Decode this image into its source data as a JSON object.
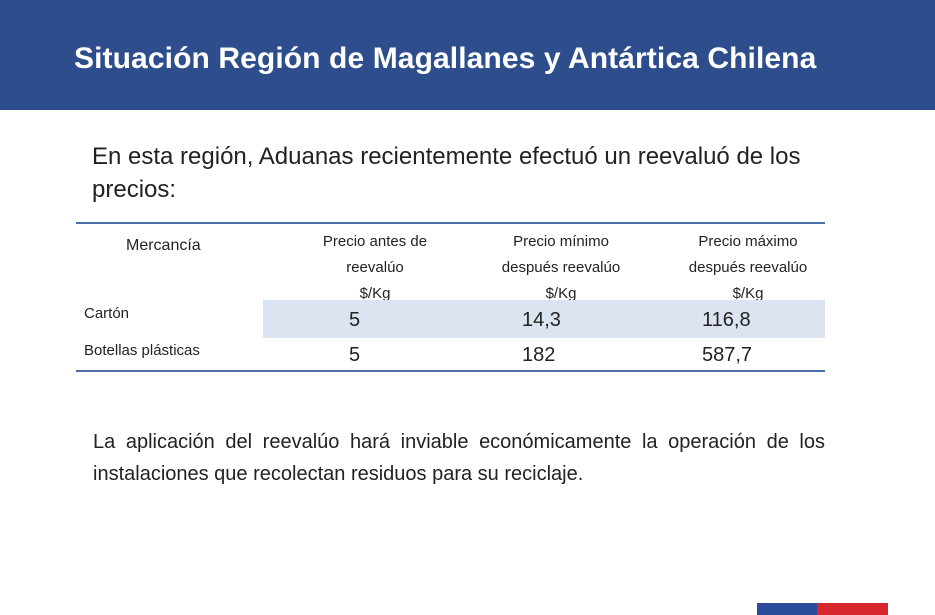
{
  "header": {
    "title": "Situación Región de Magallanes y Antártica Chilena",
    "background_color": "#2d4d8c"
  },
  "intro_text": "En esta región, Aduanas recientemente efectuó un reevaluó de los precios:",
  "table": {
    "headers": {
      "mercancia": "Mercancía",
      "precio_antes": [
        "Precio  antes de",
        "reevalúo",
        "$/Kg"
      ],
      "precio_minimo": [
        "Precio mínimo",
        "después reevalúo",
        "$/Kg"
      ],
      "precio_maximo": [
        "Precio máximo",
        "después reevalúo",
        "$/Kg"
      ]
    },
    "rows": [
      {
        "mercancia": "Cartón",
        "precio_antes": "5",
        "precio_minimo": "14,3",
        "precio_maximo": "116,8"
      },
      {
        "mercancia": "Botellas plásticas",
        "precio_antes": "5",
        "precio_minimo": "182",
        "precio_maximo": "587,7"
      }
    ],
    "accent_color": "#4a6fa8",
    "band_color": "#dce3f1"
  },
  "conclusion_text": "La aplicación del reevalúo hará inviable económicamente la operación de los instalaciones que recolectan residuos para su reciclaje.",
  "flag_colors": {
    "blue": "#2b4c9a",
    "red": "#d7262e"
  }
}
